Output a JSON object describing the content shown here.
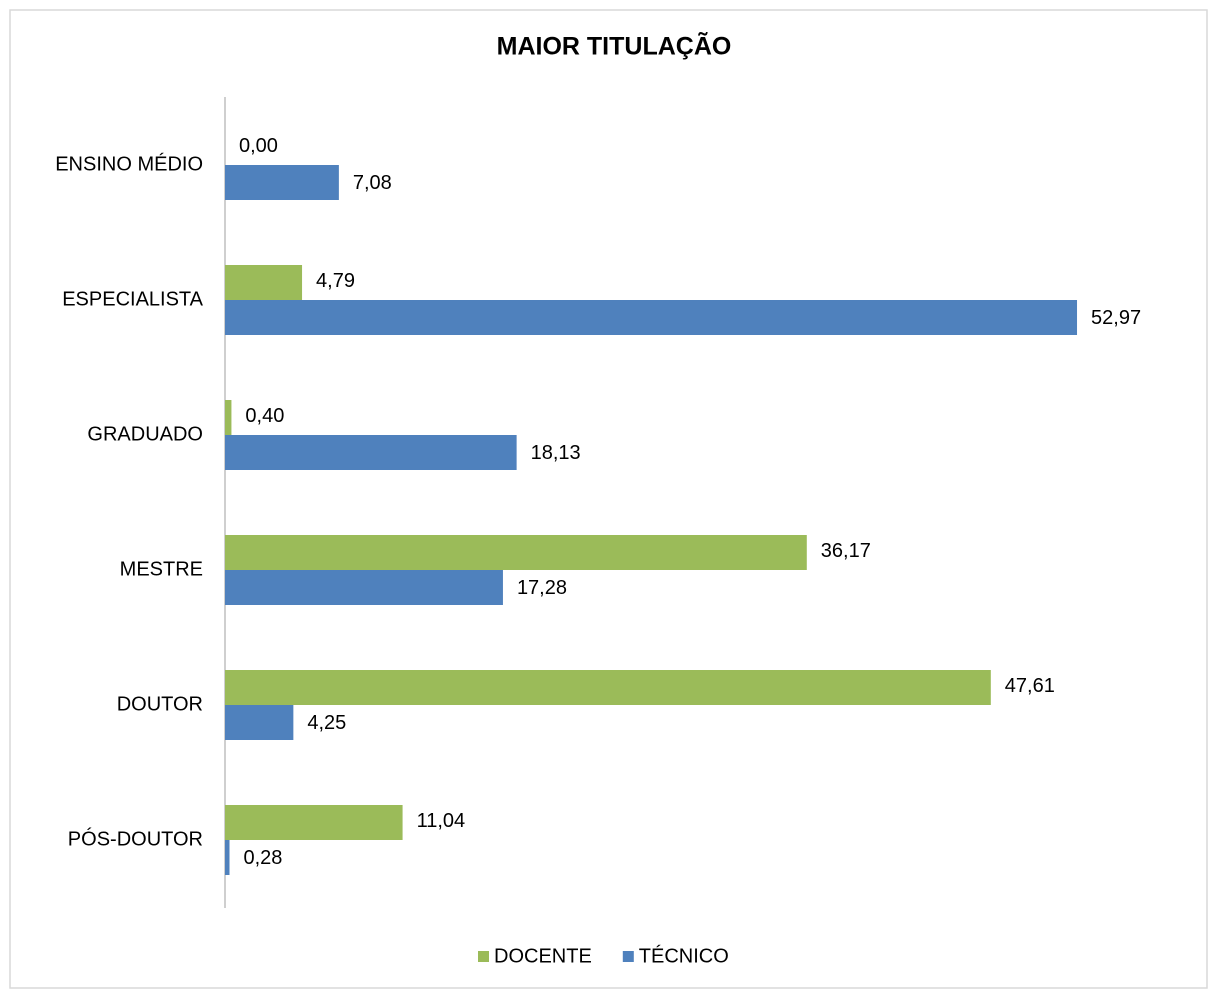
{
  "chart_data": {
    "type": "bar",
    "orientation": "horizontal",
    "title": "MAIOR TITULAÇÃO",
    "categories": [
      "ENSINO MÉDIO",
      "ESPECIALISTA",
      "GRADUADO",
      "MESTRE",
      "DOUTOR",
      "PÓS-DOUTOR"
    ],
    "series": [
      {
        "name": "DOCENTE",
        "color": "#9bbb59",
        "values": [
          0,
          4.79,
          0.4,
          36.17,
          47.61,
          11.04
        ],
        "value_labels": [
          "0,00",
          "4,79",
          "0,40",
          "36,17",
          "47,61",
          "11,04"
        ]
      },
      {
        "name": "TÉCNICO",
        "color": "#4f81bd",
        "values": [
          7.08,
          52.97,
          18.13,
          17.28,
          4.25,
          0.28
        ],
        "value_labels": [
          "7,08",
          "52,97",
          "18,13",
          "17,28",
          "4,25",
          "0,28"
        ]
      }
    ],
    "legend": "bottom"
  }
}
